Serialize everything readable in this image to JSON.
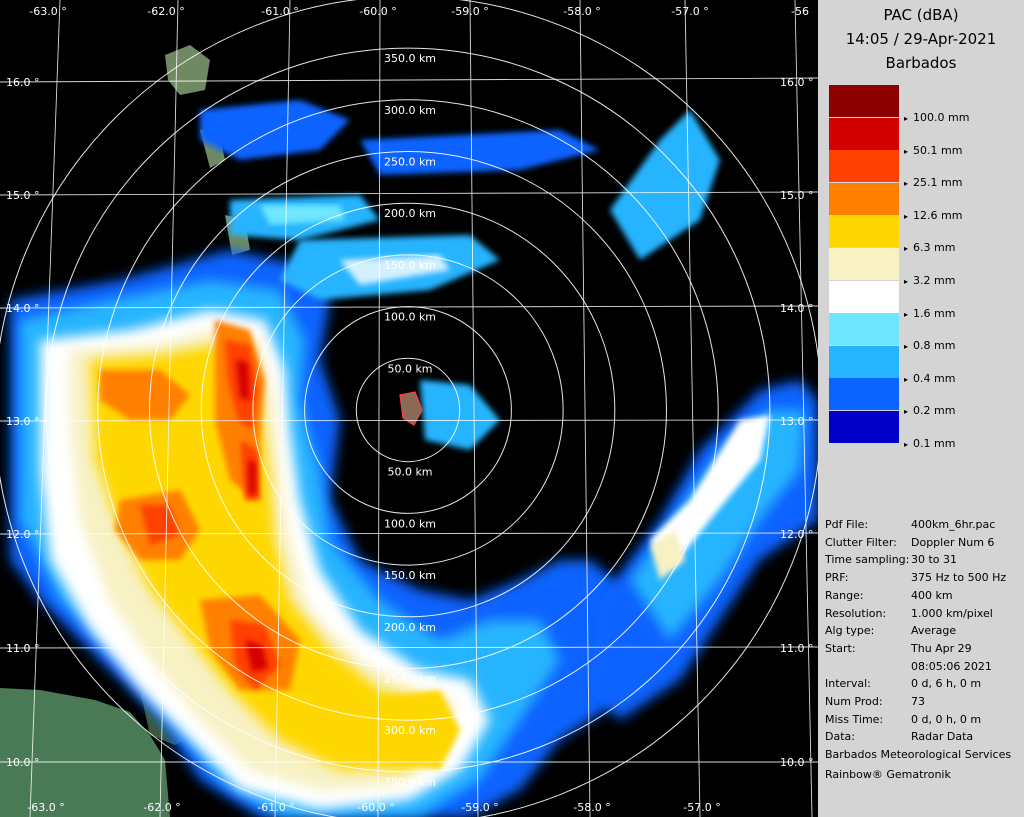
{
  "panel": {
    "title": "PAC (dBA)",
    "datetime": "14:05 / 29-Apr-2021",
    "site": "Barbados",
    "legend": [
      {
        "label": "100.0 mm",
        "color": "#8b0000"
      },
      {
        "label": "50.1 mm",
        "color": "#d40000"
      },
      {
        "label": "25.1 mm",
        "color": "#ff4000"
      },
      {
        "label": "12.6 mm",
        "color": "#ff8000"
      },
      {
        "label": "6.3 mm",
        "color": "#ffd700"
      },
      {
        "label": "3.2 mm",
        "color": "#f7f1c3"
      },
      {
        "label": "1.6 mm",
        "color": "#ffffff"
      },
      {
        "label": "0.8 mm",
        "color": "#6fe6ff"
      },
      {
        "label": "0.4 mm",
        "color": "#27b4ff"
      },
      {
        "label": "0.2 mm",
        "color": "#0a64ff"
      },
      {
        "label": "0.1 mm",
        "color": "#0000c8"
      }
    ],
    "info": [
      {
        "key": "Pdf File:",
        "value": "400km_6hr.pac"
      },
      {
        "key": "Clutter Filter:",
        "value": "Doppler Num 6"
      },
      {
        "key": "Time sampling:",
        "value": "30 to 31"
      },
      {
        "key": "PRF:",
        "value": "375 Hz to 500 Hz"
      },
      {
        "key": "Range:",
        "value": "400 km"
      },
      {
        "key": "Resolution:",
        "value": "1.000 km/pixel"
      },
      {
        "key": "Alg type:",
        "value": "Average"
      },
      {
        "key": "Start:",
        "value": "Thu Apr 29"
      },
      {
        "key": "",
        "value": "08:05:06 2021"
      },
      {
        "key": "Interval:",
        "value": "0 d, 6 h, 0 m"
      },
      {
        "key": "Num Prod:",
        "value": "73"
      },
      {
        "key": "Miss Time:",
        "value": "0 d, 0 h, 0 m"
      },
      {
        "key": "Data:",
        "value": "Radar Data"
      }
    ],
    "org": "Barbados Meteorological Services",
    "vendor": "Rainbow® Gematronik"
  },
  "map": {
    "lon_labels_top": [
      "-63.0 °",
      "-62.0 °",
      "-61.0 °",
      "-60.0 °",
      "-59.0 °",
      "-58.0 °",
      "-57.0 °",
      "-56"
    ],
    "lon_labels_bottom": [
      "-63.0 °",
      "-62.0 °",
      "-61.0 °",
      "-60.0 °",
      "-59.0 °",
      "-58.0 °",
      "-57.0 °"
    ],
    "lat_labels_left": [
      "16.0 °",
      "15.0 °",
      "14.0 °",
      "13.0 °",
      "12.0 °",
      "11.0 °",
      "10.0 °"
    ],
    "lat_labels_right": [
      "16.0 °",
      "15.0 °",
      "14.0 °",
      "13.0 °",
      "12.0 °",
      "11.0 °",
      "10.0 °"
    ],
    "range_labels_north": [
      "350.0 km",
      "300.0 km",
      "250.0 km",
      "200.0 km",
      "150.0 km",
      "100.0 km",
      "50.0 km"
    ],
    "range_labels_south": [
      "50.0 km",
      "100.0 km",
      "150.0 km",
      "200.0 km",
      "250.0 km",
      "300.0 km",
      "350.0 km"
    ]
  }
}
